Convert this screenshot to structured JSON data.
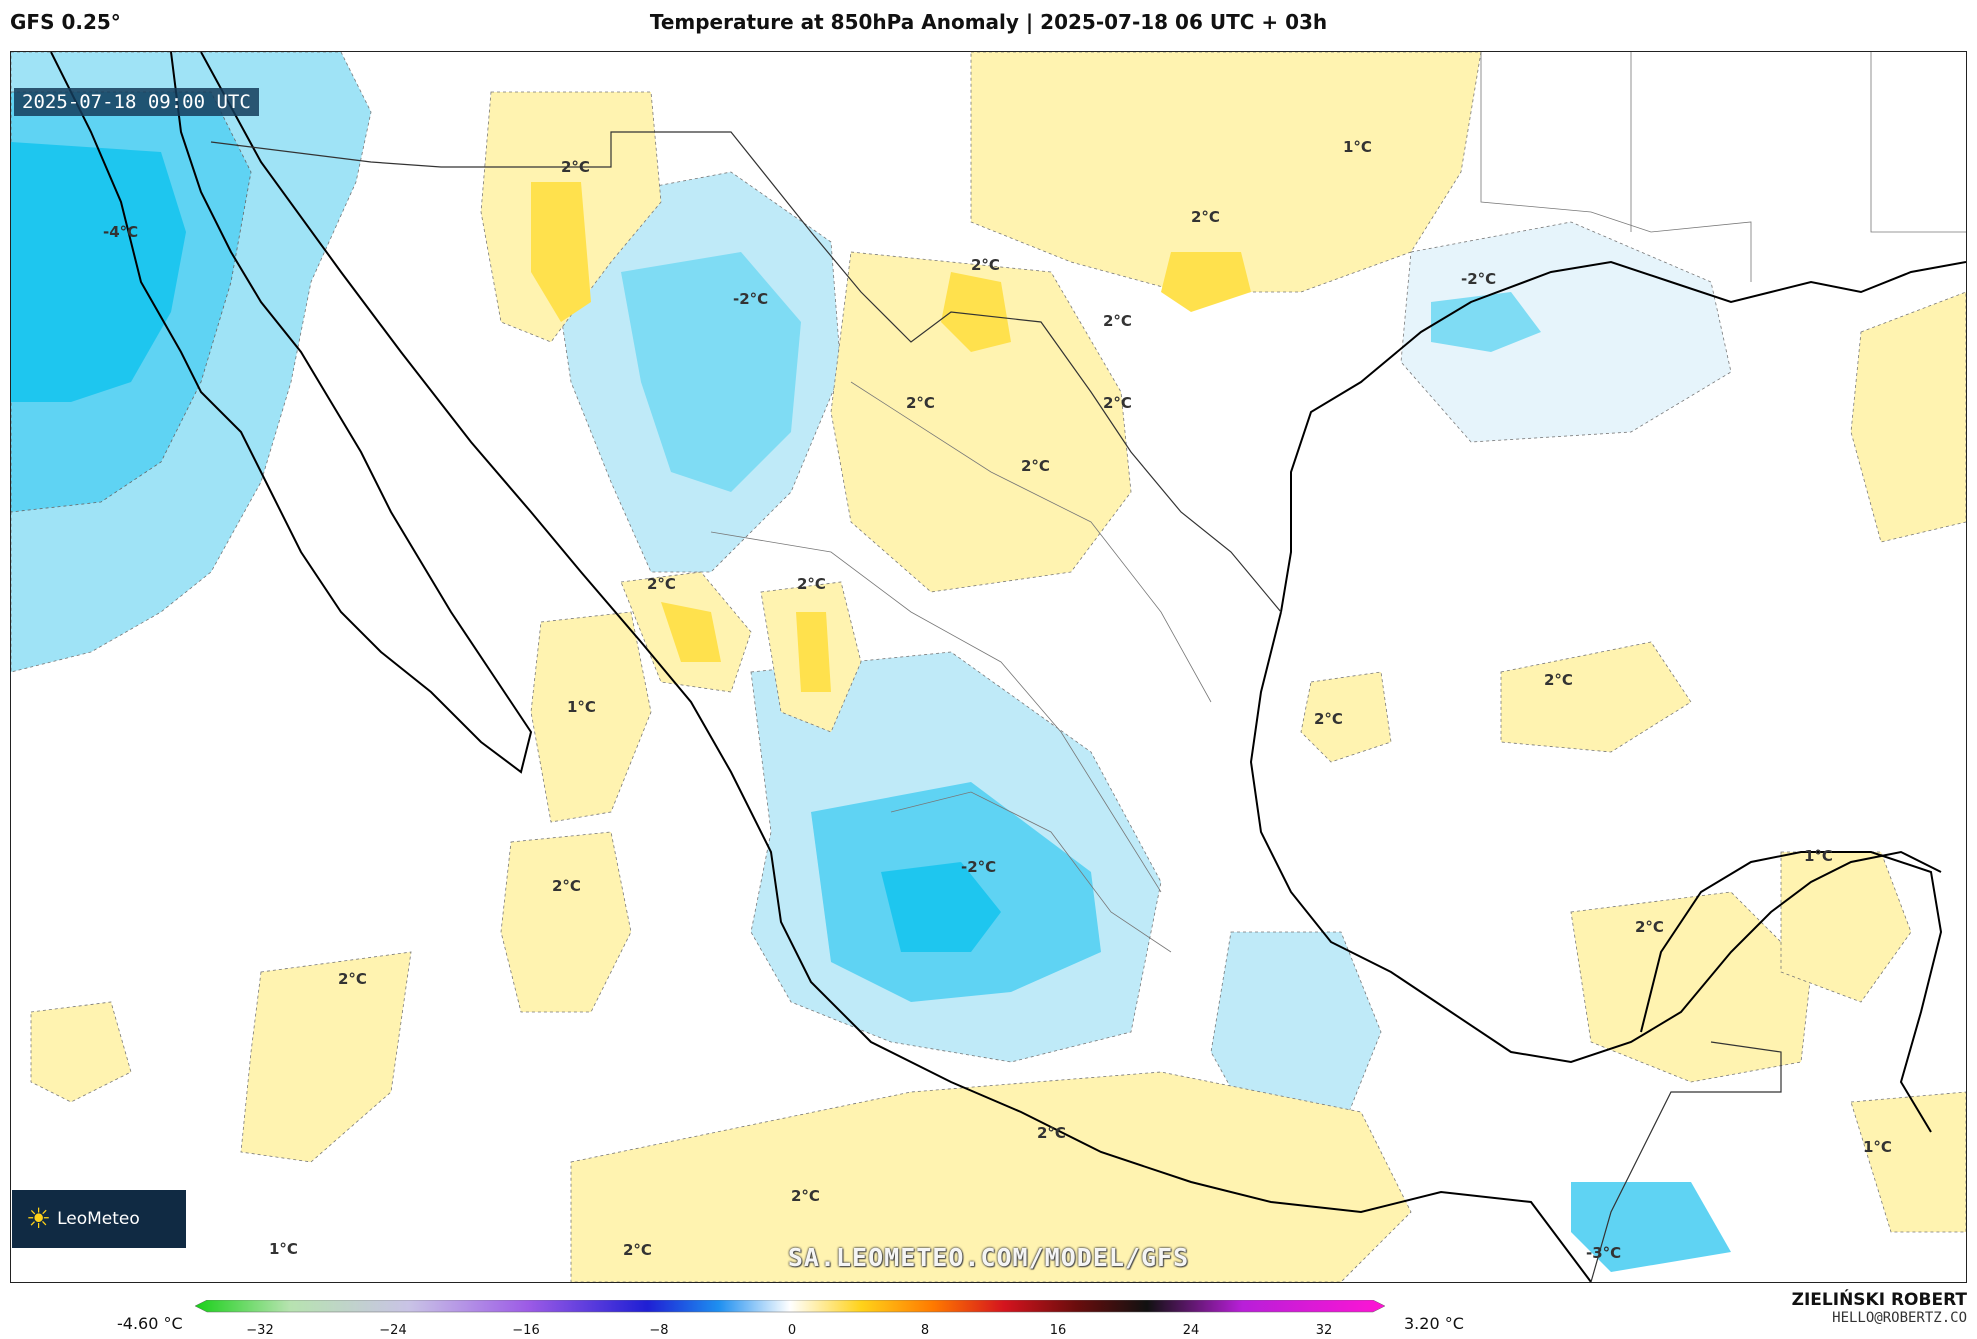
{
  "header": {
    "model": "GFS 0.25°",
    "title": "Temperature at 850hPa Anomaly | 2025-07-18 06 UTC + 03h"
  },
  "map": {
    "valid_time": "2025-07-18 09:00 UTC",
    "brand": "LeoMeteo",
    "watermark": "SA.LEOMETEO.COM/MODEL/GFS",
    "region": "Mexico and Gulf of Mexico",
    "colors": {
      "land_bg": "#ffffff",
      "anomaly_pos_1": "#fff3b0",
      "anomaly_pos_2": "#ffe14d",
      "anomaly_neg_1": "#e6f4fb",
      "anomaly_neg_2": "#9fe3f6",
      "anomaly_neg_3": "#5fd3f3",
      "anomaly_neg_4": "#1ec6ef",
      "coast": "#000000",
      "border": "#555555"
    },
    "contour_labels": [
      {
        "text": "-4°C"
      },
      {
        "text": "2°C"
      },
      {
        "text": "2°C"
      },
      {
        "text": "-2°C"
      },
      {
        "text": "2°C"
      },
      {
        "text": "1°C"
      },
      {
        "text": "2°C"
      },
      {
        "text": "-2°C"
      },
      {
        "text": "2°C"
      },
      {
        "text": "2°C"
      },
      {
        "text": "2°C"
      },
      {
        "text": "2°C"
      },
      {
        "text": "2°C"
      },
      {
        "text": "1°C"
      },
      {
        "text": "2°C"
      },
      {
        "text": "2°C"
      },
      {
        "text": "2°C"
      },
      {
        "text": "2°C"
      },
      {
        "text": "-2°C"
      },
      {
        "text": "1°C"
      },
      {
        "text": "2°C"
      },
      {
        "text": "2°C"
      },
      {
        "text": "2°C"
      },
      {
        "text": "1°C"
      },
      {
        "text": "2°C"
      },
      {
        "text": "-3°C"
      },
      {
        "text": "1°C"
      }
    ]
  },
  "legend": {
    "min_label": "-4.60 °C",
    "max_label": "3.20 °C",
    "ticks": [
      "−32",
      "−24",
      "−16",
      "−8",
      "0",
      "8",
      "16",
      "24",
      "32"
    ]
  },
  "author": {
    "name": "ZIELIŃSKI ROBERT",
    "email": "HELLO@ROBERTZ.CO"
  }
}
